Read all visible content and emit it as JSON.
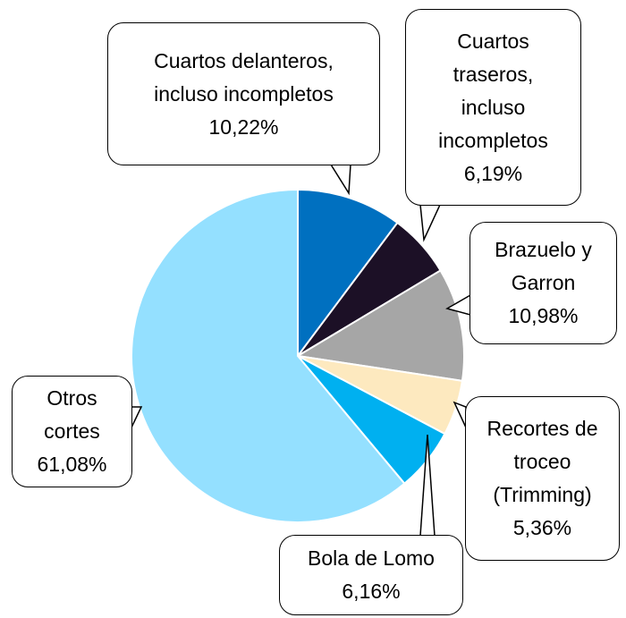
{
  "chart_data": {
    "type": "pie",
    "categories": [
      "Cuartos delanteros, incluso incompletos",
      "Cuartos traseros, incluso incompletos",
      "Brazuelo y Garron",
      "Recortes de troceo (Trimming)",
      "Bola de Lomo",
      "Otros cortes"
    ],
    "values": [
      10.22,
      6.19,
      10.98,
      5.36,
      6.16,
      61.08
    ],
    "value_labels": [
      "10,22%",
      "6,19%",
      "10,98%",
      "5,36%",
      "6,16%",
      "61,08%"
    ],
    "colors": [
      "#0070c0",
      "#1c1026",
      "#a6a6a6",
      "#fde9bf",
      "#00b0f0",
      "#94e0ff"
    ]
  }
}
